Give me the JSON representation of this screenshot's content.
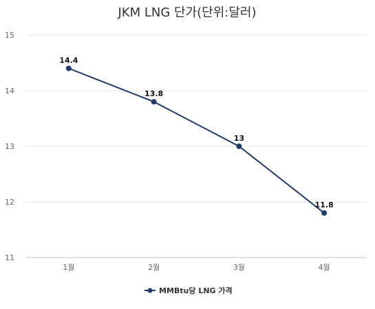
{
  "chart_data": {
    "type": "line",
    "title": "JKM LNG 단가(단위:달러)",
    "xlabel": "",
    "ylabel": "",
    "categories": [
      "1월",
      "2월",
      "3월",
      "4월"
    ],
    "series": [
      {
        "name": "MMBtu당 LNG 가격",
        "values": [
          14.4,
          13.8,
          13,
          11.8
        ],
        "labels": [
          "14.4",
          "13.8",
          "13",
          "11.8"
        ]
      }
    ],
    "ylim": [
      11,
      15
    ],
    "yticks": [
      11,
      12,
      13,
      14,
      15
    ],
    "grid": true,
    "legend": "bottom-center",
    "colors": {
      "series": "#1f3b68",
      "grid": "#e6e6e6",
      "axis": "#bfbfbf"
    }
  }
}
